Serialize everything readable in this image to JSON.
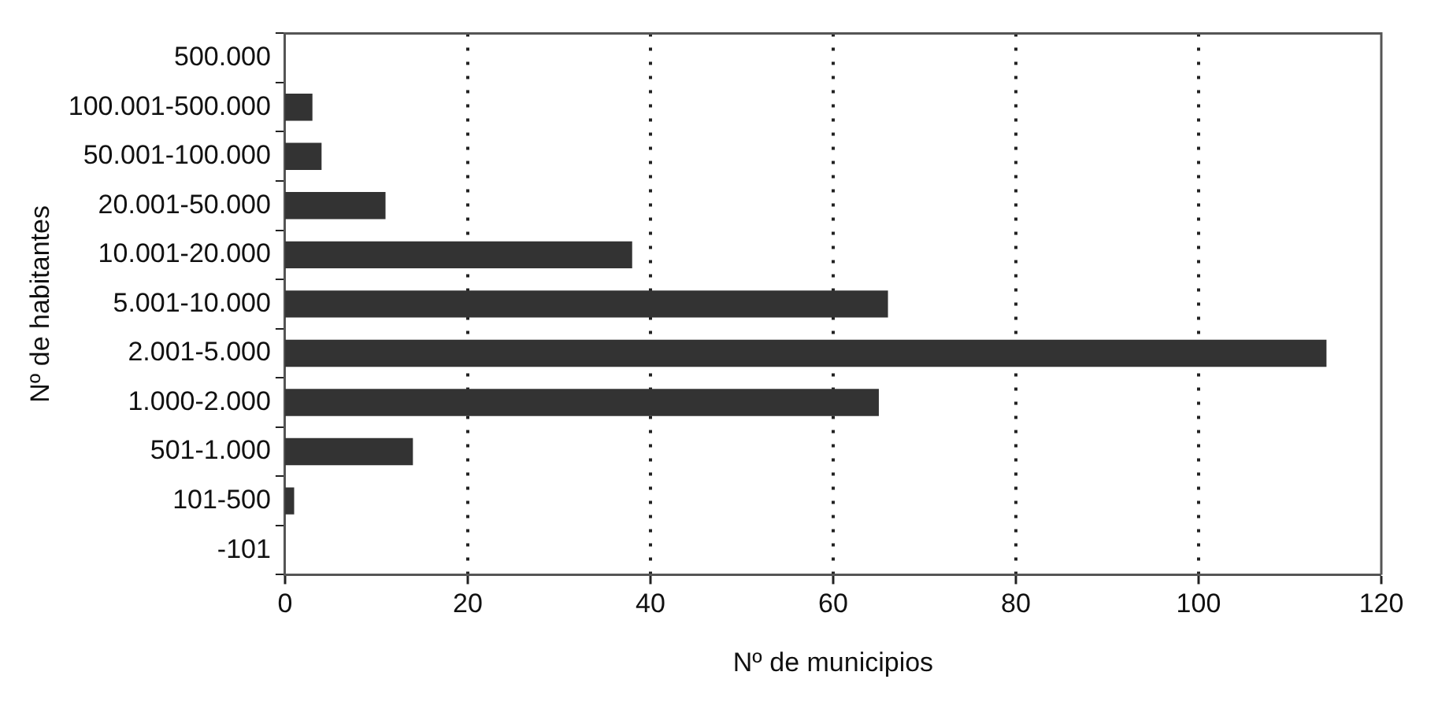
{
  "chart_data": {
    "type": "bar",
    "orientation": "horizontal",
    "xlabel": "Nº de municipios",
    "ylabel": "Nº de habitantes",
    "categories": [
      "500.000",
      "100.001-500.000",
      "50.001-100.000",
      "20.001-50.000",
      "10.001-20.000",
      "5.001-10.000",
      "2.001-5.000",
      "1.000-2.000",
      "501-1.000",
      "101-500",
      "-101"
    ],
    "values": [
      0,
      3,
      4,
      11,
      38,
      66,
      114,
      65,
      14,
      1,
      0
    ],
    "color": "#333333",
    "xlim": [
      0,
      120
    ],
    "xticks": [
      0,
      20,
      40,
      60,
      80,
      100,
      120
    ],
    "grid": "x",
    "legend": false
  }
}
